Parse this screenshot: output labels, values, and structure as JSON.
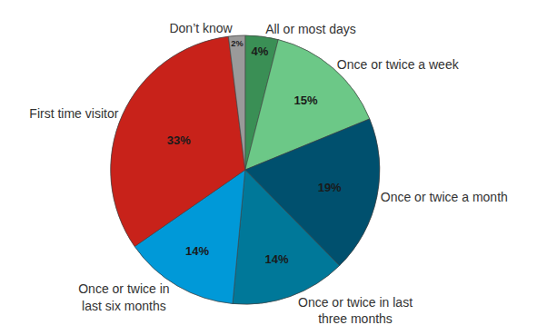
{
  "chart_data": {
    "type": "pie",
    "categories": [
      "All or most days",
      "Once or twice a week",
      "Once or twice a month",
      "Once or twice in last three months",
      "Once or twice in last six months",
      "First time visitor",
      "Don’t know"
    ],
    "values": [
      4,
      15,
      19,
      14,
      14,
      33,
      2
    ],
    "value_labels": [
      "4%",
      "15%",
      "19%",
      "14%",
      "14%",
      "33%",
      "2%"
    ],
    "colors": [
      "#3a8f55",
      "#6cc887",
      "#00506e",
      "#007899",
      "#0099d8",
      "#c8221a",
      "#9a9a9a"
    ],
    "data_labels": true
  }
}
